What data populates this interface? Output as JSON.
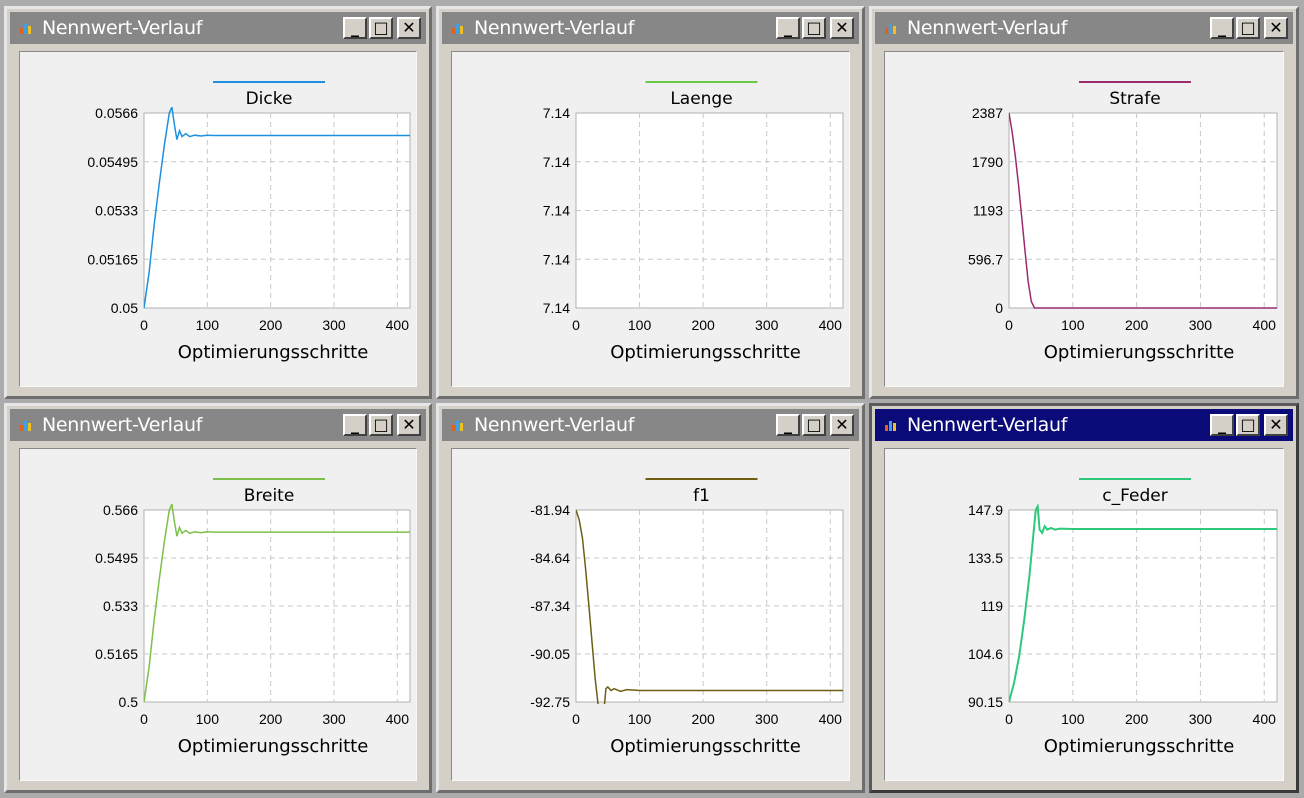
{
  "windows": [
    {
      "title": "Nennwert-Verlauf",
      "active": false,
      "buttons": {
        "minimize": "_",
        "maximize": "□",
        "close": "✕"
      }
    },
    {
      "title": "Nennwert-Verlauf",
      "active": false,
      "buttons": {
        "minimize": "_",
        "maximize": "□",
        "close": "✕"
      }
    },
    {
      "title": "Nennwert-Verlauf",
      "active": false,
      "buttons": {
        "minimize": "_",
        "maximize": "□",
        "close": "✕"
      }
    },
    {
      "title": "Nennwert-Verlauf",
      "active": false,
      "buttons": {
        "minimize": "_",
        "maximize": "□",
        "close": "✕"
      }
    },
    {
      "title": "Nennwert-Verlauf",
      "active": false,
      "buttons": {
        "minimize": "_",
        "maximize": "□",
        "close": "✕"
      }
    },
    {
      "title": "Nennwert-Verlauf",
      "active": true,
      "buttons": {
        "minimize": "_",
        "maximize": "□",
        "close": "✕"
      }
    }
  ],
  "icons": {
    "window": "chart-app-icon",
    "minimize": "minimize-icon",
    "maximize": "maximize-icon",
    "close": "close-icon"
  },
  "chart_data": [
    {
      "type": "line",
      "series": [
        {
          "name": "Dicke",
          "color": "#1e90e0",
          "x": [
            0,
            8,
            16,
            24,
            32,
            40,
            44,
            48,
            52,
            56,
            60,
            66,
            72,
            80,
            90,
            100,
            110,
            150,
            200,
            250,
            300,
            350,
            420
          ],
          "y": [
            0.05,
            0.0512,
            0.0528,
            0.0542,
            0.0555,
            0.0566,
            0.0568,
            0.0562,
            0.0557,
            0.056,
            0.0558,
            0.0559,
            0.0558,
            0.05585,
            0.05582,
            0.05585,
            0.05584,
            0.05584,
            0.05584,
            0.05584,
            0.05584,
            0.05584,
            0.05584
          ]
        }
      ],
      "xlabel": "Optimierungsschritte",
      "ylabel": "",
      "xlim": [
        0,
        420
      ],
      "ylim": [
        0.05,
        0.0566
      ],
      "xticks": [
        0,
        100,
        200,
        300,
        400
      ],
      "yticks": [
        0.05,
        0.05165,
        0.0533,
        0.05495,
        0.0566
      ],
      "ytick_labels": [
        "0.05",
        "0.05165",
        "0.0533",
        "0.05495",
        "0.0566"
      ],
      "grid": true,
      "legend": "top-center"
    },
    {
      "type": "line",
      "series": [
        {
          "name": "Laenge",
          "color": "#6cc84a",
          "x": [],
          "y": []
        }
      ],
      "xlabel": "Optimierungsschritte",
      "ylabel": "",
      "xlim": [
        0,
        420
      ],
      "ylim": [
        0,
        4
      ],
      "xticks": [
        0,
        100,
        200,
        300,
        400
      ],
      "yticks": [
        0,
        1,
        2,
        3,
        4
      ],
      "ytick_labels": [
        "7.14",
        "7.14",
        "7.14",
        "7.14",
        "7.14"
      ],
      "grid": true,
      "legend": "top-center"
    },
    {
      "type": "line",
      "series": [
        {
          "name": "Strafe",
          "color": "#9c2a6e",
          "x": [
            0,
            5,
            10,
            15,
            20,
            25,
            30,
            35,
            40,
            45,
            50,
            60,
            100,
            200,
            300,
            420
          ],
          "y": [
            2387,
            2150,
            1850,
            1500,
            1100,
            700,
            330,
            80,
            0,
            0,
            0,
            0,
            0,
            0,
            0,
            0
          ]
        }
      ],
      "xlabel": "Optimierungsschritte",
      "ylabel": "",
      "xlim": [
        0,
        420
      ],
      "ylim": [
        0,
        2387
      ],
      "xticks": [
        0,
        100,
        200,
        300,
        400
      ],
      "yticks": [
        0,
        596.7,
        1193,
        1790,
        2387
      ],
      "ytick_labels": [
        "0",
        "596.7",
        "1193",
        "1790",
        "2387"
      ],
      "grid": true,
      "legend": "top-center"
    },
    {
      "type": "line",
      "series": [
        {
          "name": "Breite",
          "color": "#7cc04a",
          "x": [
            0,
            8,
            16,
            24,
            32,
            40,
            44,
            48,
            52,
            56,
            60,
            66,
            72,
            80,
            90,
            100,
            110,
            150,
            200,
            250,
            300,
            350,
            420
          ],
          "y": [
            0.5,
            0.512,
            0.528,
            0.542,
            0.555,
            0.566,
            0.568,
            0.562,
            0.557,
            0.56,
            0.558,
            0.559,
            0.558,
            0.5585,
            0.5582,
            0.5585,
            0.5584,
            0.5584,
            0.5584,
            0.5584,
            0.5584,
            0.5584,
            0.5584
          ]
        }
      ],
      "xlabel": "Optimierungsschritte",
      "ylabel": "",
      "xlim": [
        0,
        420
      ],
      "ylim": [
        0.5,
        0.566
      ],
      "xticks": [
        0,
        100,
        200,
        300,
        400
      ],
      "yticks": [
        0.5,
        0.5165,
        0.533,
        0.5495,
        0.566
      ],
      "ytick_labels": [
        "0.5",
        "0.5165",
        "0.533",
        "0.5495",
        "0.566"
      ],
      "grid": true,
      "legend": "top-center"
    },
    {
      "type": "line",
      "series": [
        {
          "name": "f1",
          "color": "#6e5e14",
          "x": [
            0,
            5,
            10,
            15,
            20,
            25,
            30,
            35,
            40,
            44,
            47,
            50,
            55,
            60,
            70,
            80,
            100,
            150,
            200,
            300,
            420
          ],
          "y": [
            -81.94,
            -82.5,
            -83.5,
            -85.2,
            -87.2,
            -89.3,
            -91.4,
            -93.0,
            -93.4,
            -93.2,
            -92.0,
            -91.9,
            -92.1,
            -92.0,
            -92.15,
            -92.05,
            -92.1,
            -92.1,
            -92.1,
            -92.1,
            -92.1
          ]
        }
      ],
      "xlabel": "Optimierungsschritte",
      "ylabel": "",
      "xlim": [
        0,
        420
      ],
      "ylim": [
        -92.75,
        -81.94
      ],
      "xticks": [
        0,
        100,
        200,
        300,
        400
      ],
      "yticks": [
        -92.75,
        -90.05,
        -87.34,
        -84.64,
        -81.94
      ],
      "ytick_labels": [
        "-92.75",
        "-90.05",
        "-87.34",
        "-84.64",
        "-81.94"
      ],
      "grid": true,
      "legend": "top-center"
    },
    {
      "type": "line",
      "series": [
        {
          "name": "c_Feder",
          "color": "#2ec87a",
          "x": [
            0,
            8,
            16,
            24,
            32,
            38,
            42,
            45,
            48,
            52,
            56,
            60,
            66,
            72,
            80,
            100,
            150,
            200,
            300,
            420
          ],
          "y": [
            90.15,
            96,
            104,
            115,
            128,
            140,
            148,
            149,
            142,
            141,
            143,
            142,
            142.5,
            142,
            142.3,
            142.2,
            142.2,
            142.2,
            142.2,
            142.2
          ]
        }
      ],
      "xlabel": "Optimierungsschritte",
      "ylabel": "",
      "xlim": [
        0,
        420
      ],
      "ylim": [
        90.15,
        147.9
      ],
      "xticks": [
        0,
        100,
        200,
        300,
        400
      ],
      "yticks": [
        90.15,
        104.6,
        119,
        133.5,
        147.9
      ],
      "ytick_labels": [
        "90.15",
        "104.6",
        "119",
        "133.5",
        "147.9"
      ],
      "grid": true,
      "legend": "top-center"
    }
  ]
}
